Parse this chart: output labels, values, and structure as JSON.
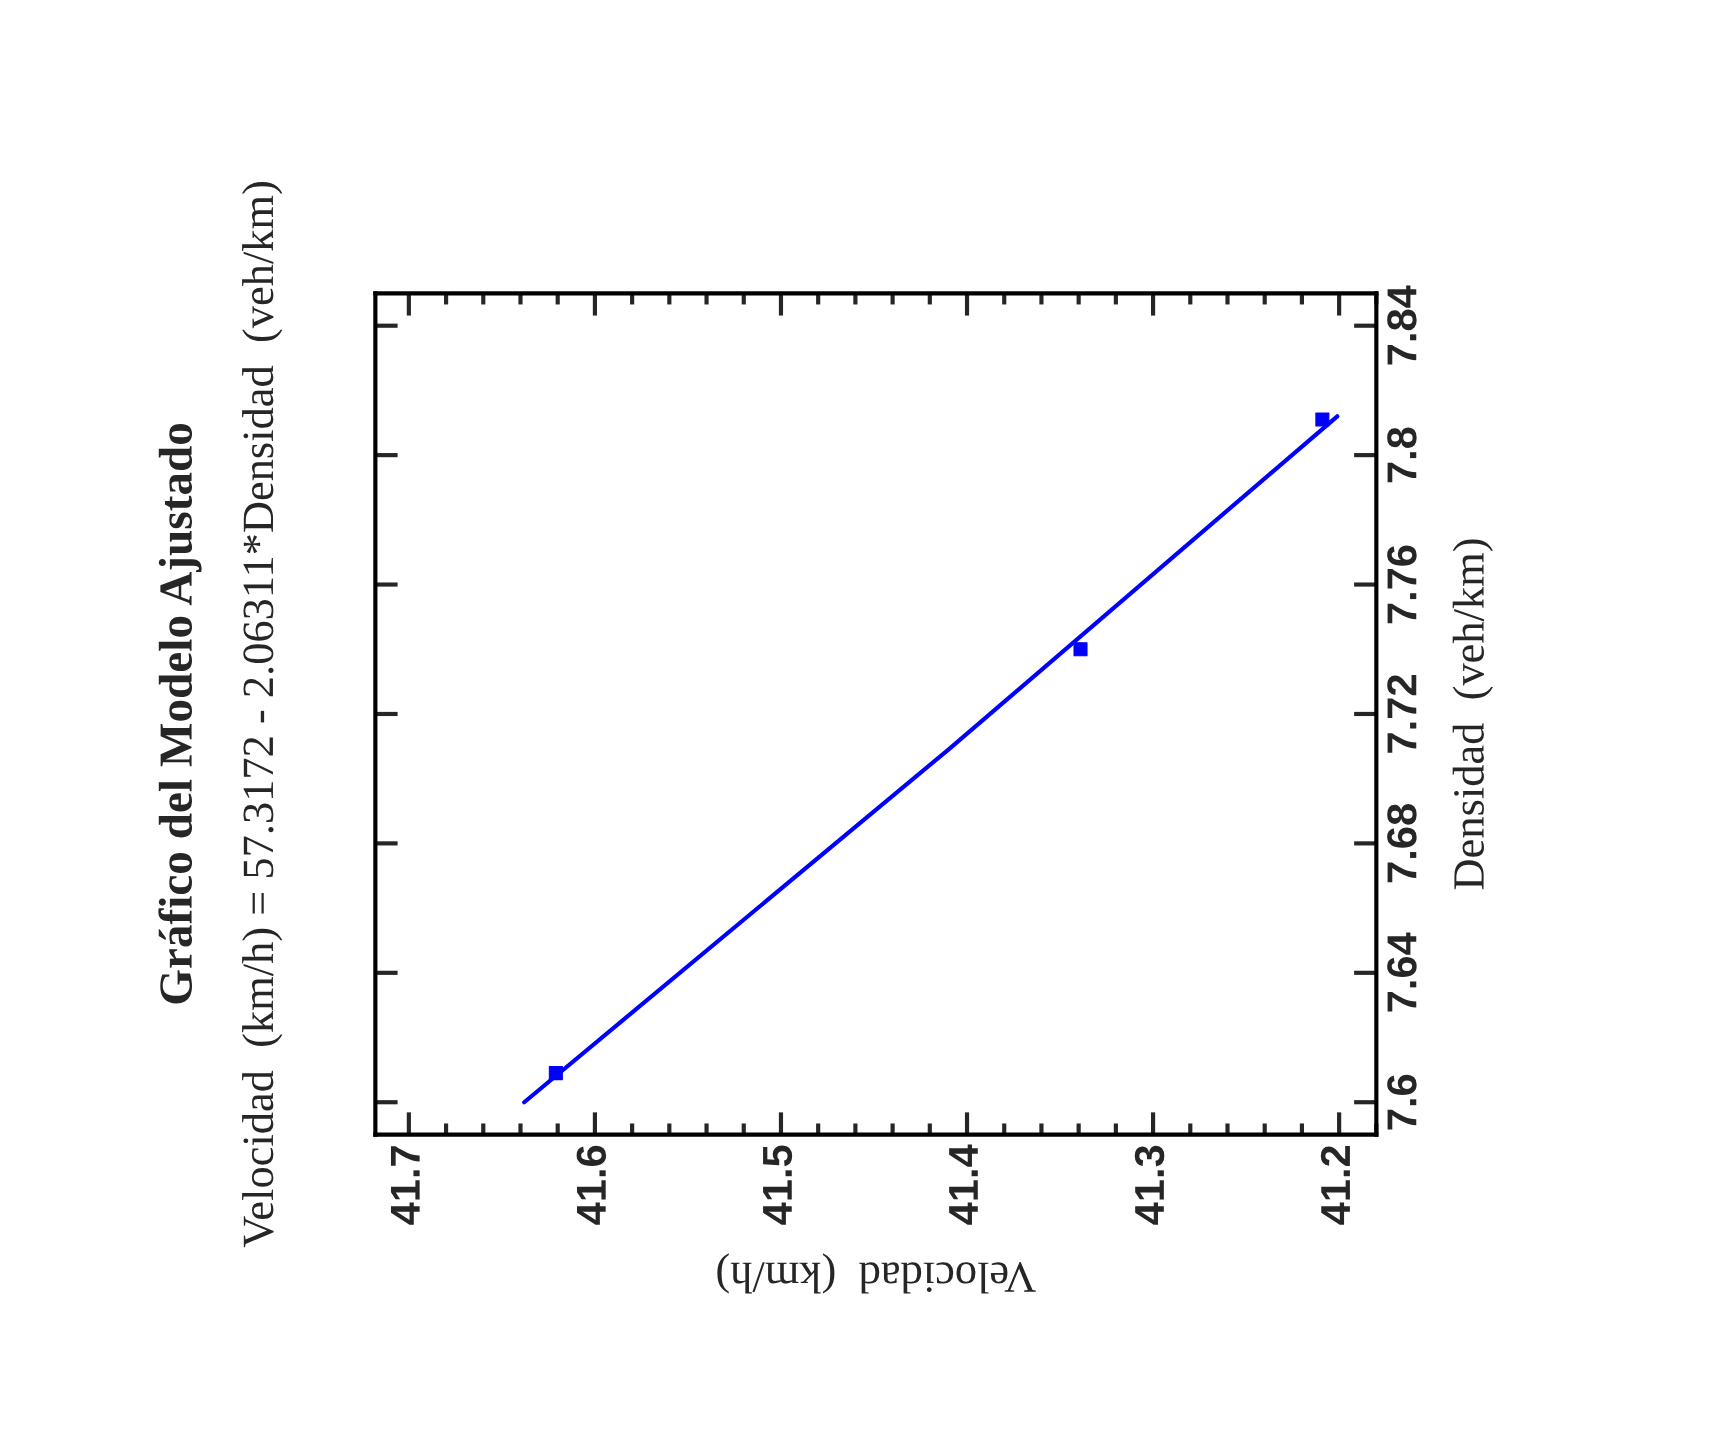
{
  "chart_data": {
    "type": "scatter",
    "title": "Gráfico del Modelo Ajustado",
    "subtitle": "Velocidad  (km/h) = 57.3172 - 2.06311*Densidad  (veh/km)",
    "xlabel": "Velocidad  (km/h)",
    "ylabel": "Densidad  (veh/km)",
    "series": [
      {
        "color": "#0000ff",
        "x": [
          41.621,
          41.339,
          41.209
        ],
        "values": [
          7.609,
          7.74,
          7.811
        ],
        "marker": "square"
      },
      {
        "type": "line",
        "color": "#0000ff",
        "x": [
          41.638,
          41.41,
          41.201
        ],
        "values": [
          7.6,
          7.709,
          7.812
        ],
        "marker": "none",
        "line_style": "solid"
      }
    ],
    "xlim": [
      41.718,
      41.18
    ],
    "xticks": [
      41.7,
      41.6,
      41.5,
      41.4,
      41.3,
      41.2
    ],
    "ylim": [
      7.59,
      7.85
    ],
    "yticks": [
      7.6,
      7.64,
      7.68,
      7.72,
      7.76,
      7.8,
      7.84
    ],
    "grid": false,
    "legend": false
  }
}
